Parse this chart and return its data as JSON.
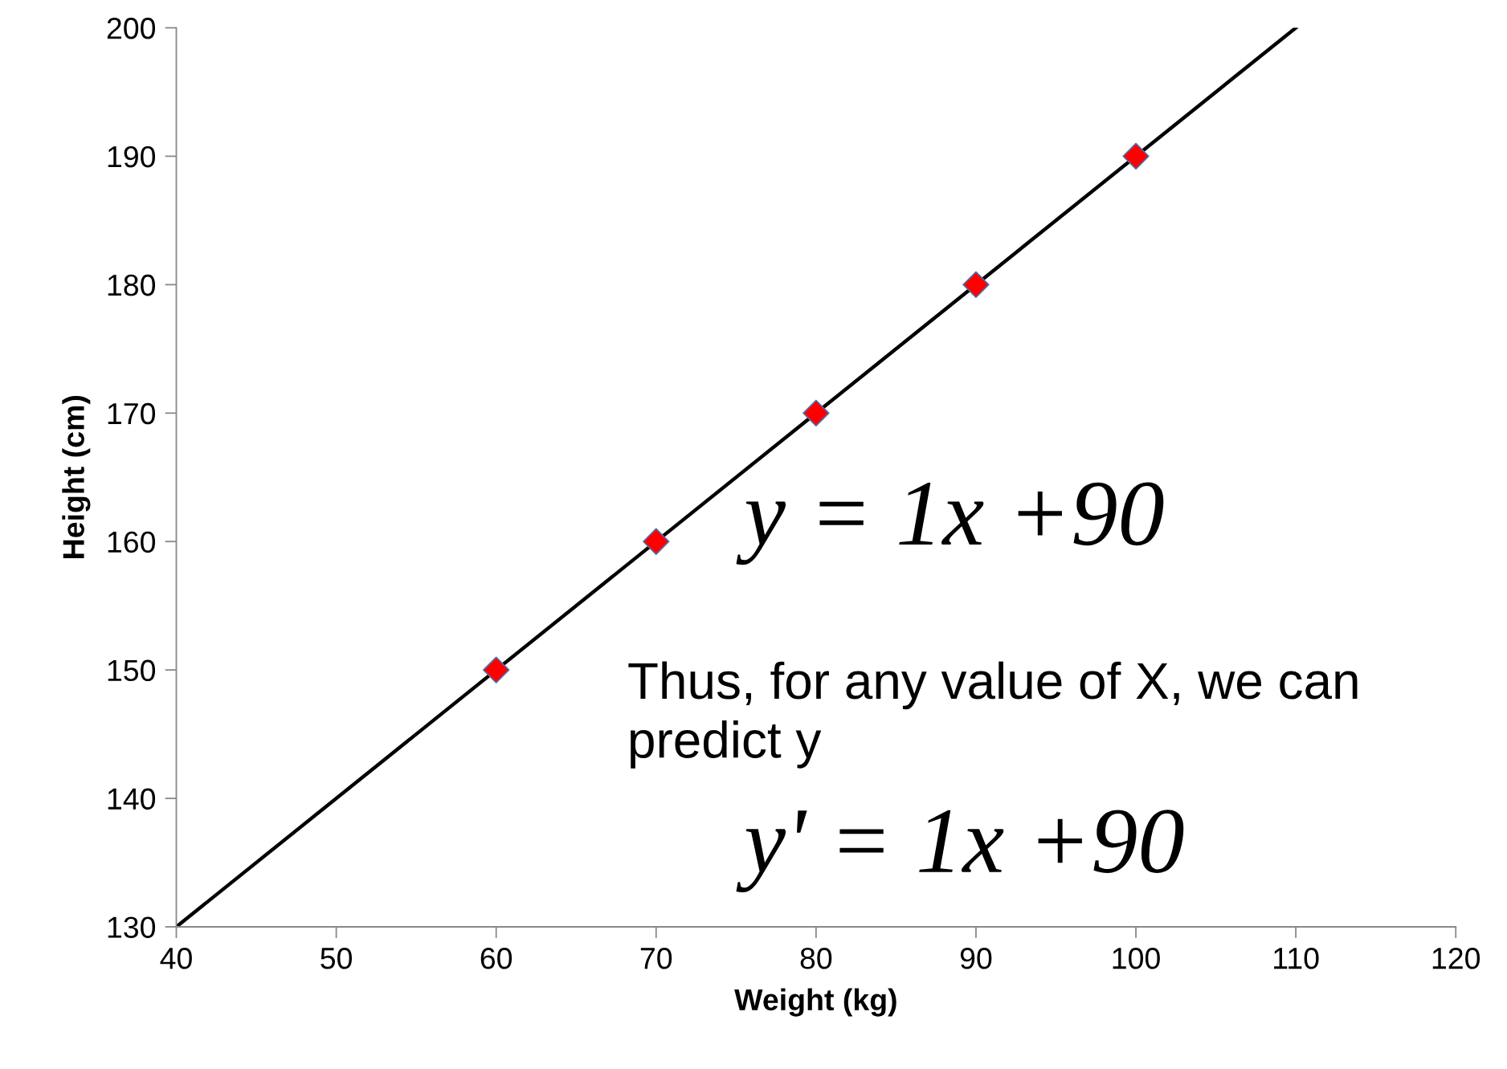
{
  "chart_data": {
    "type": "scatter",
    "xlabel": "Weight (kg)",
    "ylabel": "Height (cm)",
    "series": [
      {
        "type": "line",
        "color": "#000000",
        "x": [
          40,
          110
        ],
        "values": [
          130,
          200
        ]
      },
      {
        "color": "#ff0000",
        "marker": "diamond",
        "x": [
          60,
          70,
          80,
          90,
          100
        ],
        "values": [
          150,
          160,
          170,
          180,
          190
        ]
      }
    ],
    "grid": false,
    "legend": false,
    "xlim": [
      40,
      120
    ],
    "xticks": [
      40,
      50,
      60,
      70,
      80,
      90,
      100,
      110,
      120
    ],
    "ylim": [
      130,
      200
    ],
    "yticks": [
      130,
      140,
      150,
      160,
      170,
      180,
      190,
      200
    ],
    "annotations": [
      "y = 1x +90",
      "Thus, for any value of X, we can predict y",
      "y' = 1x +90"
    ]
  }
}
